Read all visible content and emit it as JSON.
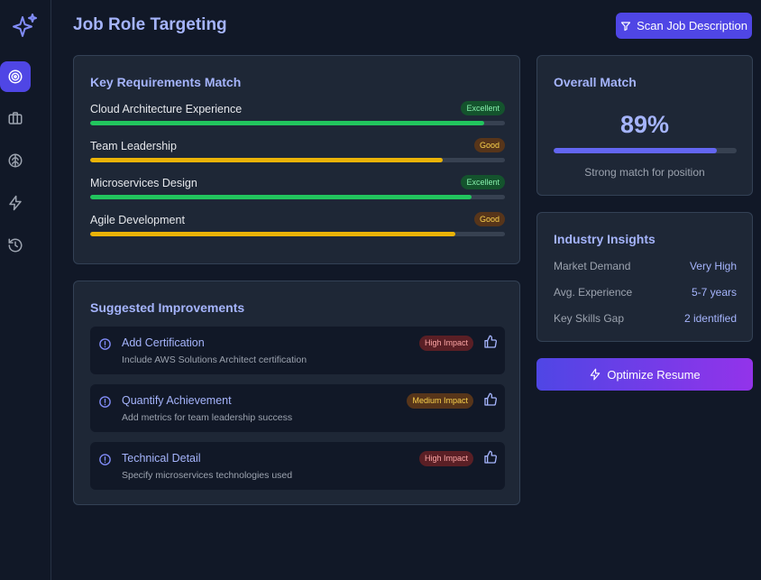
{
  "header": {
    "title": "Job Role Targeting",
    "scan_button_label": "Scan Job Description"
  },
  "sidebar": {
    "items": [
      {
        "icon": "target-icon",
        "active": true
      },
      {
        "icon": "briefcase-icon",
        "active": false
      },
      {
        "icon": "brain-icon",
        "active": false
      },
      {
        "icon": "lightning-icon",
        "active": false
      },
      {
        "icon": "history-icon",
        "active": false
      }
    ]
  },
  "requirements": {
    "title": "Key Requirements Match",
    "items": [
      {
        "label": "Cloud Architecture Experience",
        "badge": "Excellent",
        "progress": 0.95
      },
      {
        "label": "Team Leadership",
        "badge": "Good",
        "progress": 0.85
      },
      {
        "label": "Microservices Design",
        "badge": "Excellent",
        "progress": 0.92
      },
      {
        "label": "Agile Development",
        "badge": "Good",
        "progress": 0.88
      }
    ]
  },
  "overall": {
    "title": "Overall Match",
    "percent_label": "89%",
    "progress": 0.89,
    "note": "Strong match for position"
  },
  "insights": {
    "title": "Industry Insights",
    "items": [
      {
        "label": "Market Demand",
        "value": "Very High"
      },
      {
        "label": "Avg. Experience",
        "value": "5-7 years"
      },
      {
        "label": "Key Skills Gap",
        "value": "2 identified"
      }
    ]
  },
  "optimize_button_label": "Optimize Resume",
  "improvements": {
    "title": "Suggested Improvements",
    "items": [
      {
        "title": "Add Certification",
        "description": "Include AWS Solutions Architect certification",
        "impact": "High Impact"
      },
      {
        "title": "Quantify Achievement",
        "description": "Add metrics for team leadership success",
        "impact": "Medium Impact"
      },
      {
        "title": "Technical Detail",
        "description": "Specify microservices technologies used",
        "impact": "High Impact"
      }
    ]
  },
  "colors": {
    "accent": "#4f46e5",
    "excellent": "#22c55e",
    "good": "#eab308"
  }
}
